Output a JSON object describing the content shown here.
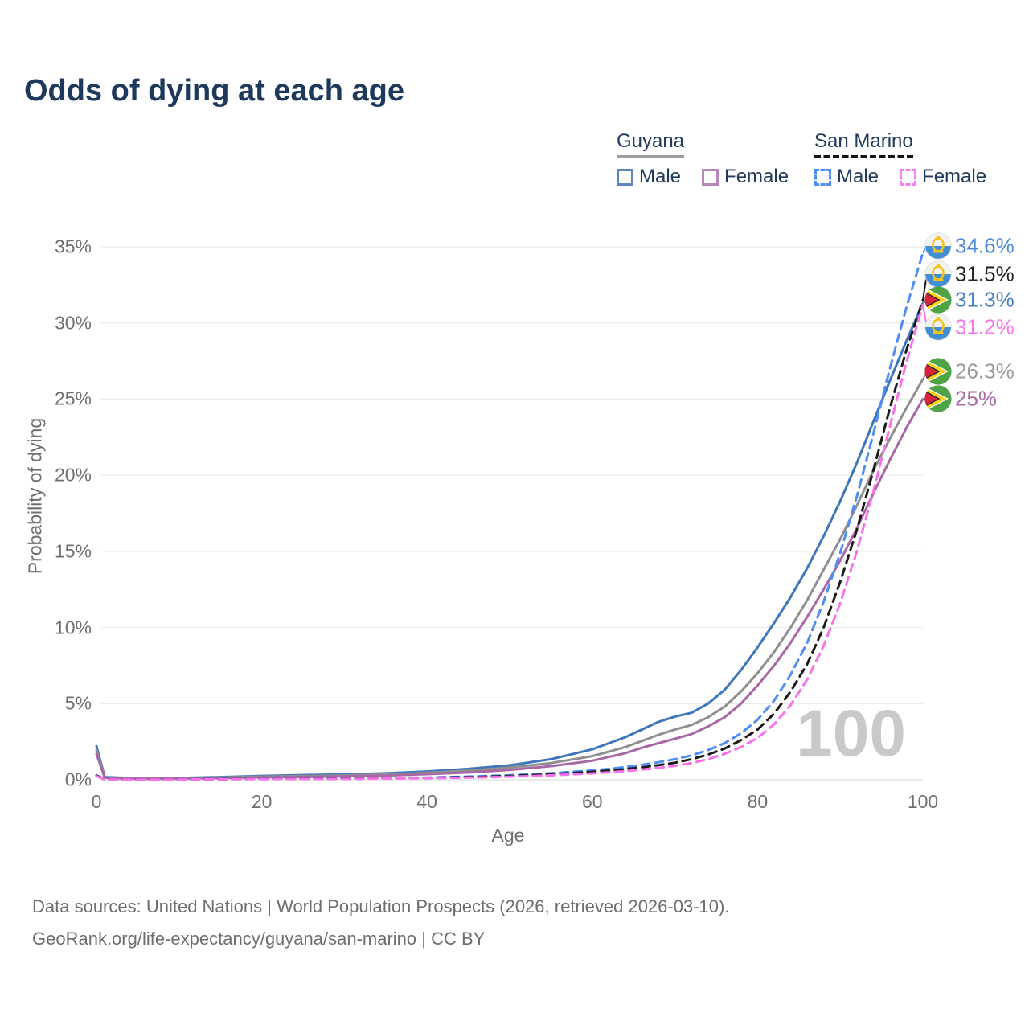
{
  "page": {
    "title": "Odds of dying at each age"
  },
  "legend": {
    "groups": [
      {
        "label": "Guyana",
        "line_style": "solid",
        "underline_color": "#9e9e9e",
        "items": [
          {
            "label": "Male",
            "color": "#5b84c4",
            "dashed": false
          },
          {
            "label": "Female",
            "color": "#b886bb",
            "dashed": false
          }
        ]
      },
      {
        "label": "San Marino",
        "line_style": "dashed",
        "underline_color": "#141414",
        "items": [
          {
            "label": "Male",
            "color": "#4e8df5",
            "dashed": true
          },
          {
            "label": "Female",
            "color": "#fb7df0",
            "dashed": true
          }
        ]
      }
    ]
  },
  "chart_data": {
    "type": "line",
    "title": "Odds of dying at each age",
    "xlabel": "Age",
    "ylabel": "Probability of dying",
    "xlim": [
      0,
      100
    ],
    "ylim": [
      0,
      35
    ],
    "xticks": [
      "0",
      "20",
      "40",
      "60",
      "80",
      "100"
    ],
    "yticks": [
      "0%",
      "5%",
      "10%",
      "15%",
      "20%",
      "25%",
      "30%",
      "35%"
    ],
    "grid": "horizontal",
    "legend_position": "top-right",
    "hover_age_indicator": "100",
    "ages": [
      0,
      1,
      5,
      10,
      15,
      20,
      25,
      30,
      35,
      40,
      45,
      50,
      55,
      60,
      62,
      64,
      66,
      68,
      70,
      72,
      74,
      76,
      78,
      80,
      82,
      84,
      86,
      88,
      90,
      92,
      94,
      96,
      98,
      100
    ],
    "series": [
      {
        "name": "Guyana Male",
        "color": "#3d76ba",
        "dashed": false,
        "flag": "guyana",
        "end_label": "31.3%",
        "end_label_color": "#4a7fc8",
        "values": [
          2.2,
          0.18,
          0.1,
          0.12,
          0.18,
          0.26,
          0.31,
          0.36,
          0.43,
          0.55,
          0.72,
          0.95,
          1.35,
          2.0,
          2.4,
          2.8,
          3.3,
          3.8,
          4.15,
          4.4,
          5.0,
          5.9,
          7.2,
          8.7,
          10.3,
          12.0,
          13.9,
          16.0,
          18.3,
          20.8,
          23.5,
          26.2,
          28.8,
          31.3
        ]
      },
      {
        "name": "Guyana (both sexes)",
        "color": "#8f8f8f",
        "dashed": false,
        "flag": "guyana",
        "end_label": "26.3%",
        "end_label_color": "#9b9b9b",
        "values": [
          1.95,
          0.15,
          0.09,
          0.1,
          0.15,
          0.21,
          0.25,
          0.29,
          0.35,
          0.46,
          0.6,
          0.8,
          1.1,
          1.55,
          1.85,
          2.15,
          2.55,
          2.95,
          3.3,
          3.6,
          4.1,
          4.8,
          5.8,
          7.0,
          8.4,
          10.0,
          11.8,
          13.8,
          15.8,
          18.0,
          20.3,
          22.4,
          24.4,
          26.3
        ]
      },
      {
        "name": "Guyana Female",
        "color": "#a768a5",
        "dashed": false,
        "flag": "guyana",
        "end_label": "25%",
        "end_label_color": "#aa6ca5",
        "values": [
          1.7,
          0.13,
          0.07,
          0.08,
          0.12,
          0.16,
          0.19,
          0.23,
          0.28,
          0.37,
          0.48,
          0.65,
          0.9,
          1.25,
          1.5,
          1.75,
          2.1,
          2.4,
          2.7,
          3.0,
          3.5,
          4.1,
          5.0,
          6.2,
          7.5,
          9.0,
          10.7,
          12.5,
          14.4,
          16.5,
          18.8,
          21.0,
          23.1,
          25.0
        ]
      },
      {
        "name": "San Marino Male",
        "color": "#4e8df5",
        "dashed": true,
        "flag": "san-marino",
        "end_label": "34.6%",
        "end_label_color": "#4b8bdd",
        "values": [
          0.3,
          0.03,
          0.02,
          0.03,
          0.05,
          0.08,
          0.09,
          0.1,
          0.12,
          0.15,
          0.21,
          0.3,
          0.43,
          0.62,
          0.72,
          0.84,
          0.98,
          1.15,
          1.35,
          1.6,
          1.95,
          2.4,
          3.05,
          3.95,
          5.2,
          6.9,
          9.0,
          11.7,
          14.9,
          18.6,
          22.7,
          27.0,
          31.0,
          34.6
        ]
      },
      {
        "name": "San Marino (both sexes)",
        "color": "#1a1a1a",
        "dashed": true,
        "flag": "san-marino",
        "end_label": "31.5%",
        "end_label_color": "#222222",
        "values": [
          0.27,
          0.025,
          0.02,
          0.025,
          0.04,
          0.06,
          0.07,
          0.08,
          0.1,
          0.12,
          0.17,
          0.25,
          0.36,
          0.52,
          0.6,
          0.7,
          0.82,
          0.96,
          1.12,
          1.35,
          1.65,
          2.05,
          2.6,
          3.3,
          4.35,
          5.8,
          7.6,
          10.0,
          13.0,
          16.4,
          20.3,
          24.4,
          28.2,
          31.5
        ]
      },
      {
        "name": "San Marino Female",
        "color": "#f970ea",
        "dashed": true,
        "flag": "san-marino",
        "end_label": "31.2%",
        "end_label_color": "#f776e9",
        "values": [
          0.24,
          0.02,
          0.015,
          0.02,
          0.03,
          0.05,
          0.055,
          0.06,
          0.08,
          0.1,
          0.14,
          0.2,
          0.29,
          0.42,
          0.49,
          0.57,
          0.67,
          0.78,
          0.92,
          1.1,
          1.35,
          1.7,
          2.15,
          2.75,
          3.65,
          4.9,
          6.6,
          8.8,
          11.6,
          15.0,
          18.9,
          23.2,
          27.4,
          31.2
        ]
      }
    ]
  },
  "footer": {
    "line1": "Data sources: United Nations | World Population Prospects (2026, retrieved 2026-03-10).",
    "line2": "GeoRank.org/life-expectancy/guyana/san-marino | CC BY"
  }
}
